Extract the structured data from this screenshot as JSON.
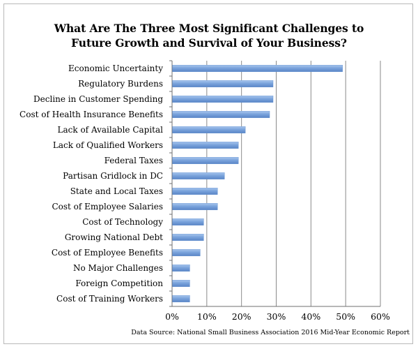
{
  "chart_data": {
    "type": "bar",
    "orientation": "horizontal",
    "title_lines": [
      "What Are The Three Most Significant Challenges to",
      "Future Growth and Survival of Your Business?"
    ],
    "categories": [
      "Economic Uncertainty",
      "Regulatory Burdens",
      "Decline in Customer Spending",
      "Cost of Health Insurance Benefits",
      "Lack of Available Capital",
      "Lack of Qualified Workers",
      "Federal Taxes",
      "Partisan Gridlock in DC",
      "State and Local Taxes",
      "Cost of Employee Salaries",
      "Cost of Technology",
      "Growing National Debt",
      "Cost of Employee Benefits",
      "No Major Challenges",
      "Foreign Competition",
      "Cost of Training Workers"
    ],
    "values": [
      49,
      29,
      29,
      28,
      21,
      19,
      19,
      15,
      13,
      13,
      9,
      9,
      8,
      5,
      5,
      5
    ],
    "xlim": [
      0,
      60
    ],
    "x_ticks": [
      0,
      10,
      20,
      30,
      40,
      50,
      60
    ],
    "x_tick_labels": [
      "0%",
      "10%",
      "20%",
      "30%",
      "40%",
      "50%",
      "60%"
    ],
    "grid": "vertical",
    "bar_color": "#7aa3dc",
    "source": "Data Source: National Small Business Association 2016 Mid-Year Economic Report"
  }
}
